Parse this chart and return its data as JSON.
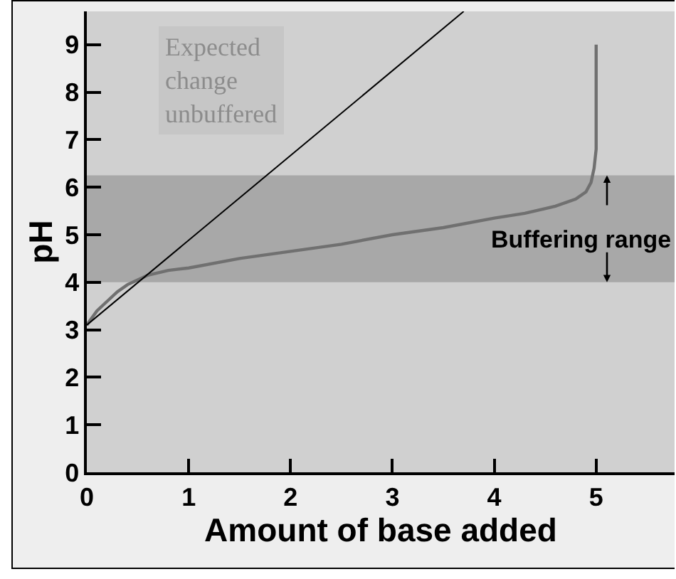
{
  "chart_data": {
    "type": "line",
    "xlabel": "Amount of base added",
    "ylabel": "pH",
    "series": [
      {
        "color": "#707070",
        "x": [
          0,
          0.1,
          0.2,
          0.3,
          0.4,
          0.5,
          0.6,
          0.8,
          1,
          1.5,
          2,
          2.5,
          3,
          3.5,
          4,
          4.3,
          4.6,
          4.8,
          4.9,
          4.95,
          4.98,
          5,
          5
        ],
        "values": [
          3.1,
          3.4,
          3.6,
          3.8,
          3.95,
          4.05,
          4.15,
          4.25,
          4.3,
          4.5,
          4.65,
          4.8,
          5.0,
          5.15,
          5.35,
          5.45,
          5.6,
          5.75,
          5.9,
          6.1,
          6.4,
          6.8,
          9
        ]
      },
      {
        "color": "#000000",
        "x": [
          0,
          3.7
        ],
        "values": [
          3.1,
          9.7
        ]
      }
    ],
    "xlim": [
      0,
      5.77
    ],
    "ylim": [
      0,
      9.7
    ],
    "xticks": [
      0,
      1,
      2,
      3,
      4,
      5
    ],
    "yticks": [
      0,
      1,
      2,
      3,
      4,
      5,
      6,
      7,
      8,
      9
    ],
    "bands": [
      {
        "axis": "y",
        "from": 4.0,
        "to": 6.25,
        "label": "Buffering range",
        "color": "#a8a8a8"
      }
    ],
    "annotations": [
      "Expected change unbuffered"
    ]
  }
}
